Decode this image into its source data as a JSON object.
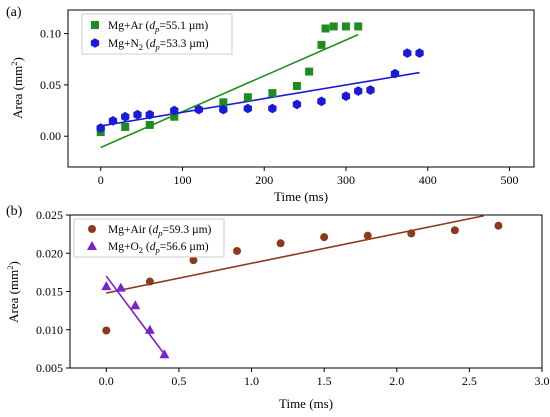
{
  "figure": {
    "panels": [
      "(a)",
      "(b)"
    ]
  },
  "chart_data": [
    {
      "type": "scatter",
      "panel_label": "(a)",
      "xlabel": "Time (ms)",
      "ylabel_main": "Area (mm",
      "ylabel_sup": "2",
      "ylabel_close": ")",
      "xlim": [
        -40,
        530
      ],
      "ylim": [
        -0.03,
        0.123
      ],
      "xticks": [
        0,
        100,
        200,
        300,
        400,
        500
      ],
      "yticks": [
        0.0,
        0.05,
        0.1
      ],
      "ytick_labels": [
        "0.00",
        "0.05",
        "0.10"
      ],
      "legend_position": "top-left",
      "series": [
        {
          "name": "Mg+Ar",
          "legend_prefix": "Mg+Ar (",
          "legend_d": "d",
          "legend_p": "p",
          "legend_value": "=55.1 µm)",
          "marker": "square",
          "color": "#1f8c1f",
          "points": [
            [
              0,
              0.004
            ],
            [
              30,
              0.009
            ],
            [
              60,
              0.011
            ],
            [
              90,
              0.019
            ],
            [
              150,
              0.033
            ],
            [
              180,
              0.038
            ],
            [
              210,
              0.042
            ],
            [
              240,
              0.049
            ],
            [
              255,
              0.063
            ],
            [
              270,
              0.089
            ],
            [
              275,
              0.105
            ],
            [
              285,
              0.107
            ],
            [
              300,
              0.107
            ],
            [
              315,
              0.107
            ]
          ],
          "fit": [
            [
              0,
              -0.011
            ],
            [
              315,
              0.099
            ]
          ]
        },
        {
          "name": "Mg+N2",
          "legend_prefix": "Mg+N",
          "legend_sub": "2",
          "legend_mid": " (",
          "legend_d": "d",
          "legend_p": "p",
          "legend_value": "=53.3 µm)",
          "marker": "hexagon",
          "color": "#1a1ad9",
          "points": [
            [
              0,
              0.008
            ],
            [
              15,
              0.015
            ],
            [
              30,
              0.019
            ],
            [
              45,
              0.021
            ],
            [
              60,
              0.021
            ],
            [
              90,
              0.025
            ],
            [
              120,
              0.026
            ],
            [
              150,
              0.026
            ],
            [
              180,
              0.027
            ],
            [
              210,
              0.027
            ],
            [
              240,
              0.031
            ],
            [
              270,
              0.034
            ],
            [
              300,
              0.039
            ],
            [
              315,
              0.044
            ],
            [
              330,
              0.045
            ],
            [
              360,
              0.061
            ],
            [
              375,
              0.081
            ],
            [
              390,
              0.081
            ]
          ],
          "fit": [
            [
              0,
              0.01
            ],
            [
              390,
              0.062
            ]
          ]
        }
      ]
    },
    {
      "type": "scatter",
      "panel_label": "(b)",
      "xlabel": "Time (ms)",
      "ylabel_main": "Area (mm",
      "ylabel_sup": "2",
      "ylabel_close": ")",
      "xlim": [
        -0.25,
        3.0
      ],
      "ylim": [
        0.005,
        0.025
      ],
      "xticks": [
        0.0,
        0.5,
        1.0,
        1.5,
        2.0,
        2.5,
        3.0
      ],
      "xtick_labels": [
        "0.0",
        "0.5",
        "1.0",
        "1.5",
        "2.0",
        "2.5",
        "3.0"
      ],
      "yticks": [
        0.005,
        0.01,
        0.015,
        0.02,
        0.025
      ],
      "ytick_labels": [
        "0.005",
        "0.010",
        "0.015",
        "0.020",
        "0.025"
      ],
      "legend_position": "top-left",
      "series": [
        {
          "name": "Mg+Air",
          "legend_prefix": "Mg+Air (",
          "legend_d": "d",
          "legend_p": "p",
          "legend_value": "=59.3 µm)",
          "marker": "circle",
          "color": "#8b3a1a",
          "points": [
            [
              0.0,
              0.0099
            ],
            [
              0.3,
              0.0163
            ],
            [
              0.6,
              0.0191
            ],
            [
              0.9,
              0.0203
            ],
            [
              1.2,
              0.0213
            ],
            [
              1.5,
              0.0221
            ],
            [
              1.8,
              0.0223
            ],
            [
              2.1,
              0.0226
            ],
            [
              2.4,
              0.023
            ],
            [
              2.7,
              0.0236
            ]
          ],
          "fit": [
            [
              0.0,
              0.0148
            ],
            [
              2.6,
              0.0249
            ]
          ]
        },
        {
          "name": "Mg+O2",
          "legend_prefix": "Mg+O",
          "legend_sub": "2",
          "legend_mid": " (",
          "legend_d": "d",
          "legend_p": "p",
          "legend_value": "=56.6 µm)",
          "marker": "triangle",
          "color": "#7a22cc",
          "points": [
            [
              0.0,
              0.0157
            ],
            [
              0.1,
              0.0155
            ],
            [
              0.2,
              0.0132
            ],
            [
              0.3,
              0.01
            ],
            [
              0.4,
              0.0068
            ]
          ],
          "fit": [
            [
              0.0,
              0.017
            ],
            [
              0.4,
              0.0068
            ]
          ]
        }
      ]
    }
  ]
}
